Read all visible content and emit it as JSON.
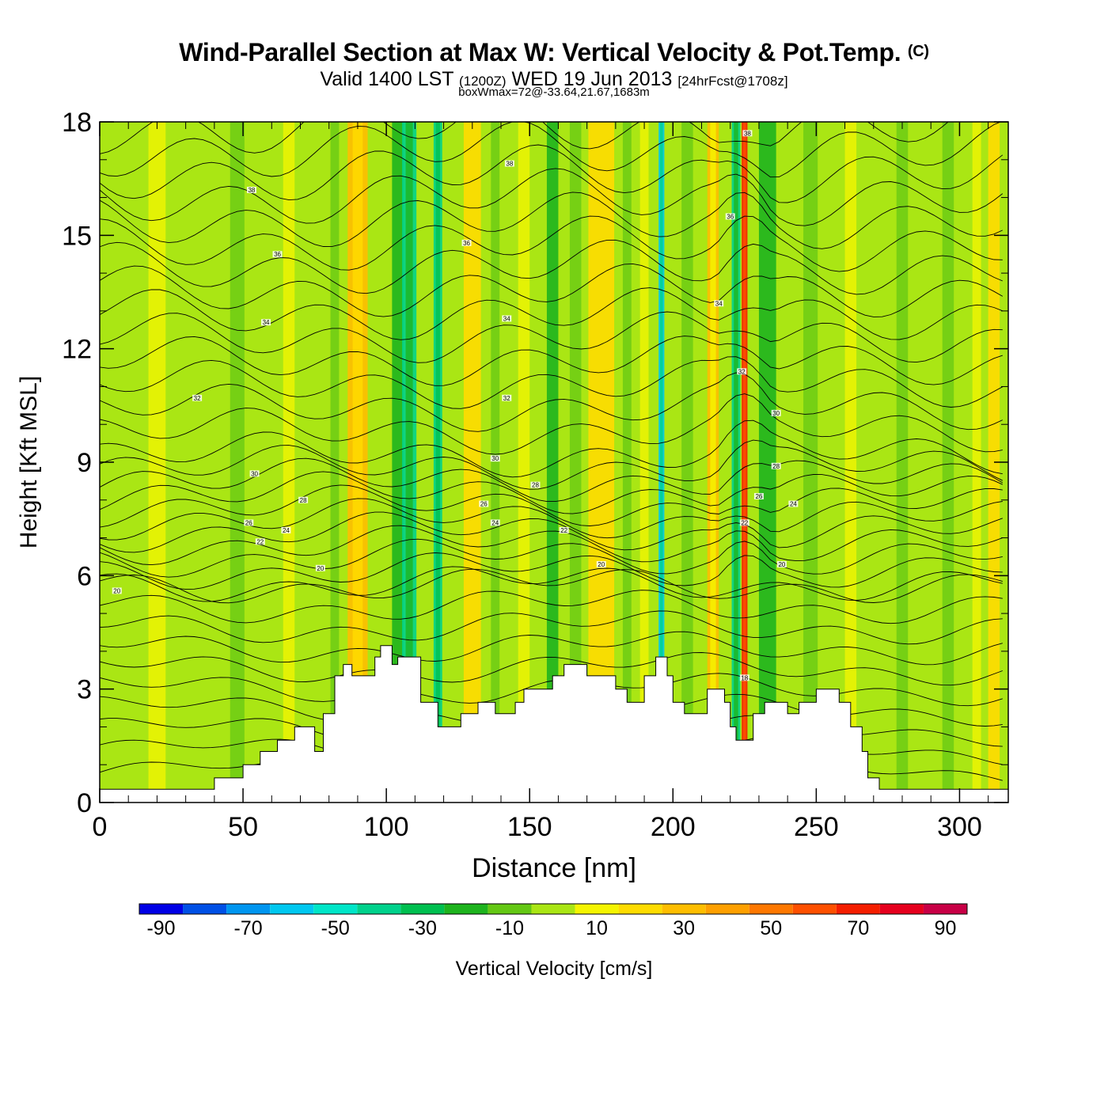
{
  "header": {
    "title": "Wind-Parallel Section at Max W: Vertical Velocity & Pot.Temp.",
    "copyright": "(C)",
    "valid_prefix": "Valid 1400 LST",
    "utc": "(1200Z)",
    "date": "WED 19 Jun 2013",
    "forecast": "[24hrFcst@1708z]",
    "box_info": "boxWmax=72@-33.64,21.67,1683m"
  },
  "chart_data": {
    "type": "heatmap",
    "title": "Wind-Parallel Section at Max W: Vertical Velocity & Pot.Temp.",
    "xlabel": "Distance [nm]",
    "ylabel": "Height [Kft MSL]",
    "xlim": [
      0,
      317
    ],
    "ylim": [
      0,
      18
    ],
    "xticks": [
      0,
      50,
      100,
      150,
      200,
      250,
      300
    ],
    "yticks": [
      0,
      3,
      6,
      9,
      12,
      15,
      18
    ],
    "colorbar": {
      "label": "Vertical Velocity [cm/s]",
      "levels": [
        -95,
        -85,
        -75,
        -65,
        -55,
        -45,
        -35,
        -25,
        -15,
        -5,
        5,
        15,
        25,
        35,
        45,
        55,
        65,
        75,
        85,
        95
      ],
      "ticks": [
        -90,
        -70,
        -50,
        -30,
        -10,
        10,
        30,
        50,
        70,
        90
      ],
      "colors": [
        "#0000e6",
        "#0050e6",
        "#0096f0",
        "#00c8f0",
        "#00e6c8",
        "#00d28c",
        "#00c050",
        "#1eb41e",
        "#64c814",
        "#aae614",
        "#f5f500",
        "#ffdc00",
        "#ffbe00",
        "#ffa000",
        "#ff7800",
        "#ff5000",
        "#f51e00",
        "#e6001e",
        "#c80046"
      ]
    },
    "streaks": [
      {
        "x": 90,
        "w": 7,
        "value": 32
      },
      {
        "x": 104,
        "w": 4,
        "value": -20
      },
      {
        "x": 108,
        "w": 5,
        "value": -40
      },
      {
        "x": 118,
        "w": 3,
        "value": -45
      },
      {
        "x": 130,
        "w": 6,
        "value": 20
      },
      {
        "x": 158,
        "w": 4,
        "value": -20
      },
      {
        "x": 175,
        "w": 9,
        "value": 18
      },
      {
        "x": 196,
        "w": 2,
        "value": -60
      },
      {
        "x": 214,
        "w": 4,
        "value": 28
      },
      {
        "x": 222,
        "w": 3,
        "value": -40
      },
      {
        "x": 225,
        "w": 2,
        "value": 70
      },
      {
        "x": 233,
        "w": 6,
        "value": -20
      },
      {
        "x": 312,
        "w": 4,
        "value": 22
      }
    ],
    "terrain": [
      [
        0,
        0.35
      ],
      [
        40,
        0.35
      ],
      [
        40,
        0.65
      ],
      [
        50,
        0.65
      ],
      [
        50,
        1.0
      ],
      [
        56,
        1.0
      ],
      [
        56,
        1.35
      ],
      [
        62,
        1.35
      ],
      [
        62,
        1.65
      ],
      [
        68,
        1.65
      ],
      [
        68,
        2.0
      ],
      [
        75,
        2.0
      ],
      [
        75,
        1.35
      ],
      [
        78,
        1.35
      ],
      [
        78,
        2.35
      ],
      [
        82,
        2.35
      ],
      [
        82,
        3.35
      ],
      [
        85,
        3.35
      ],
      [
        85,
        3.65
      ],
      [
        88,
        3.65
      ],
      [
        88,
        3.35
      ],
      [
        96,
        3.35
      ],
      [
        96,
        3.85
      ],
      [
        98,
        3.85
      ],
      [
        98,
        4.15
      ],
      [
        102,
        4.15
      ],
      [
        102,
        3.65
      ],
      [
        104,
        3.65
      ],
      [
        104,
        3.85
      ],
      [
        112,
        3.85
      ],
      [
        112,
        2.65
      ],
      [
        118,
        2.65
      ],
      [
        118,
        2.0
      ],
      [
        126,
        2.0
      ],
      [
        126,
        2.35
      ],
      [
        132,
        2.35
      ],
      [
        132,
        2.65
      ],
      [
        138,
        2.65
      ],
      [
        138,
        2.35
      ],
      [
        145,
        2.35
      ],
      [
        145,
        2.65
      ],
      [
        148,
        2.65
      ],
      [
        148,
        3.0
      ],
      [
        158,
        3.0
      ],
      [
        158,
        3.35
      ],
      [
        162,
        3.35
      ],
      [
        162,
        3.65
      ],
      [
        170,
        3.65
      ],
      [
        170,
        3.35
      ],
      [
        180,
        3.35
      ],
      [
        180,
        3.0
      ],
      [
        184,
        3.0
      ],
      [
        184,
        2.65
      ],
      [
        190,
        2.65
      ],
      [
        190,
        3.35
      ],
      [
        194,
        3.35
      ],
      [
        194,
        3.85
      ],
      [
        198,
        3.85
      ],
      [
        198,
        3.35
      ],
      [
        200,
        3.35
      ],
      [
        200,
        2.65
      ],
      [
        204,
        2.65
      ],
      [
        204,
        2.35
      ],
      [
        212,
        2.35
      ],
      [
        212,
        3.0
      ],
      [
        218,
        3.0
      ],
      [
        218,
        2.65
      ],
      [
        220,
        2.65
      ],
      [
        220,
        2.0
      ],
      [
        222,
        2.0
      ],
      [
        222,
        1.65
      ],
      [
        228,
        1.65
      ],
      [
        228,
        2.35
      ],
      [
        232,
        2.35
      ],
      [
        232,
        2.65
      ],
      [
        240,
        2.65
      ],
      [
        240,
        2.35
      ],
      [
        244,
        2.35
      ],
      [
        244,
        2.65
      ],
      [
        250,
        2.65
      ],
      [
        250,
        3.0
      ],
      [
        258,
        3.0
      ],
      [
        258,
        2.65
      ],
      [
        262,
        2.65
      ],
      [
        262,
        2.0
      ],
      [
        266,
        2.0
      ],
      [
        266,
        1.35
      ],
      [
        268,
        1.35
      ],
      [
        268,
        0.65
      ],
      [
        272,
        0.65
      ],
      [
        272,
        0.35
      ],
      [
        317,
        0.35
      ]
    ],
    "isentrope_labels": [
      {
        "text": "38",
        "x": 53,
        "y": 16.2
      },
      {
        "text": "36",
        "x": 62,
        "y": 14.5
      },
      {
        "text": "34",
        "x": 58,
        "y": 12.7
      },
      {
        "text": "32",
        "x": 34,
        "y": 10.7
      },
      {
        "text": "30",
        "x": 54,
        "y": 8.7
      },
      {
        "text": "38",
        "x": 143,
        "y": 16.9
      },
      {
        "text": "36",
        "x": 128,
        "y": 14.8
      },
      {
        "text": "34",
        "x": 142,
        "y": 12.8
      },
      {
        "text": "32",
        "x": 142,
        "y": 10.7
      },
      {
        "text": "30",
        "x": 138,
        "y": 9.1
      },
      {
        "text": "28",
        "x": 152,
        "y": 8.4
      },
      {
        "text": "26",
        "x": 134,
        "y": 7.9
      },
      {
        "text": "24",
        "x": 138,
        "y": 7.4
      },
      {
        "text": "22",
        "x": 162,
        "y": 7.2
      },
      {
        "text": "20",
        "x": 175,
        "y": 6.3
      },
      {
        "text": "38",
        "x": 226,
        "y": 17.7
      },
      {
        "text": "36",
        "x": 220,
        "y": 15.5
      },
      {
        "text": "34",
        "x": 216,
        "y": 13.2
      },
      {
        "text": "32",
        "x": 224,
        "y": 11.4
      },
      {
        "text": "30",
        "x": 236,
        "y": 10.3
      },
      {
        "text": "28",
        "x": 236,
        "y": 8.9
      },
      {
        "text": "26",
        "x": 230,
        "y": 8.1
      },
      {
        "text": "24",
        "x": 242,
        "y": 7.9
      },
      {
        "text": "22",
        "x": 225,
        "y": 7.4
      },
      {
        "text": "20",
        "x": 238,
        "y": 6.3
      },
      {
        "text": "28",
        "x": 71,
        "y": 8.0
      },
      {
        "text": "26",
        "x": 52,
        "y": 7.4
      },
      {
        "text": "24",
        "x": 65,
        "y": 7.2
      },
      {
        "text": "22",
        "x": 56,
        "y": 6.9
      },
      {
        "text": "20",
        "x": 77,
        "y": 6.2
      },
      {
        "text": "20",
        "x": 6,
        "y": 5.6
      },
      {
        "text": "18",
        "x": 225,
        "y": 3.3
      }
    ]
  }
}
